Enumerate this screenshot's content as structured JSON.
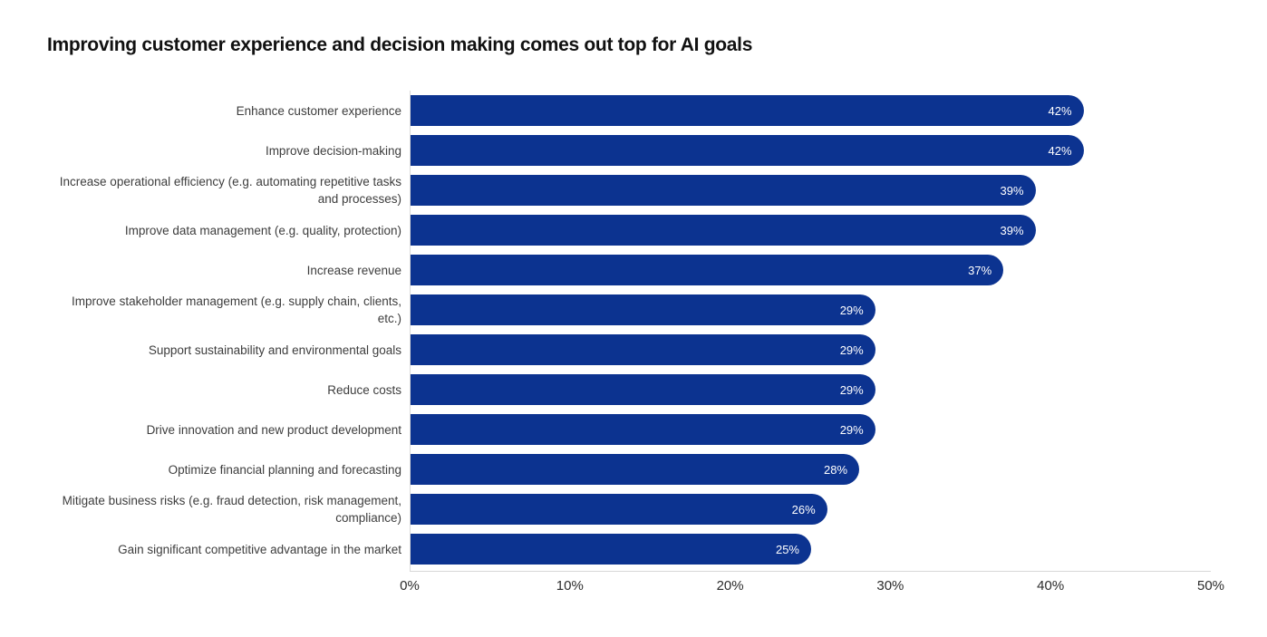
{
  "title": "Improving customer experience and decision making comes out top for AI goals",
  "chart_data": {
    "type": "bar",
    "orientation": "horizontal",
    "title": "Improving customer experience and decision making comes out top for AI goals",
    "categories": [
      "Enhance customer experience",
      "Improve decision-making",
      "Increase operational efficiency (e.g. automating repetitive tasks and processes)",
      "Improve data management (e.g. quality, protection)",
      "Increase revenue",
      "Improve stakeholder management (e.g. supply chain, clients, etc.)",
      "Support sustainability and environmental goals",
      "Reduce costs",
      "Drive innovation and new product development",
      "Optimize financial planning and forecasting",
      "Mitigate business risks (e.g. fraud detection, risk management, compliance)",
      "Gain significant competitive advantage in the market"
    ],
    "values": [
      42,
      42,
      39,
      39,
      37,
      29,
      29,
      29,
      29,
      28,
      26,
      25
    ],
    "value_labels": [
      "42%",
      "42%",
      "39%",
      "39%",
      "37%",
      "29%",
      "29%",
      "29%",
      "29%",
      "28%",
      "26%",
      "25%"
    ],
    "xlabel": "",
    "ylabel": "",
    "xlim": [
      0,
      50
    ],
    "x_ticks": [
      "0%",
      "10%",
      "20%",
      "30%",
      "40%",
      "50%"
    ],
    "grid": false,
    "legend": false,
    "bar_color": "#0c3390",
    "value_label_color": "#ffffff",
    "axis_line_color": "#d8d8d8"
  }
}
